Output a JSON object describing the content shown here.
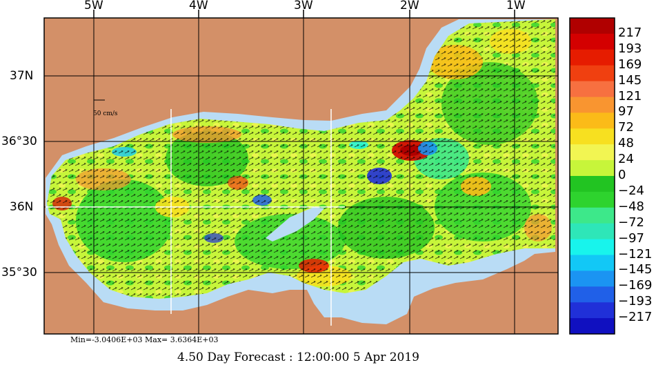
{
  "map": {
    "lon_labels": [
      "5W",
      "4W",
      "3W",
      "2W",
      "1W"
    ],
    "lat_labels": [
      "37N",
      "36°30",
      "36N",
      "35°30"
    ],
    "scale_label": "50 cm/s",
    "colors": {
      "land": "#d39068",
      "shelf": "#b9dcf5",
      "border": "#000000",
      "grid": "#000000"
    }
  },
  "colorbar": {
    "labels": [
      "217",
      "193",
      "169",
      "145",
      "121",
      "97",
      "72",
      "48",
      "24",
      "0",
      "−24",
      "−48",
      "−72",
      "−97",
      "−121",
      "−145",
      "−169",
      "−193",
      "−217"
    ],
    "colors": [
      "#b00000",
      "#d40000",
      "#e61c00",
      "#f04010",
      "#f77040",
      "#f99530",
      "#fbbb18",
      "#f7e020",
      "#f2f552",
      "#c7f53a",
      "#22c422",
      "#2ed32e",
      "#3de88a",
      "#2ee6b8",
      "#18f4ec",
      "#12c8f6",
      "#1b94f2",
      "#2060e8",
      "#2030d8",
      "#1010c0"
    ]
  },
  "footer": {
    "stats": "Min=-3.0406E+03   Max= 3.6364E+03",
    "title": "4.50 Day Forecast : 12:00:00   5 Apr 2019"
  }
}
